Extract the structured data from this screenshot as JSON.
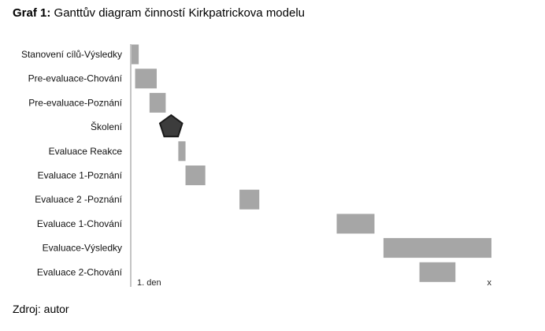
{
  "figure": {
    "label": "Graf 1:",
    "title": "Ganttův diagram činností Kirkpatrickova modelu",
    "source": "Zdroj: autor"
  },
  "chart_data": {
    "type": "bar",
    "orientation": "horizontal-gantt",
    "x_start_label": "1. den",
    "x_end_label": "x",
    "x_range": [
      0,
      100
    ],
    "tasks": [
      {
        "name": "Stanovení cílů-Výsledky",
        "start": 0.0,
        "end": 2.0,
        "marker": "bar"
      },
      {
        "name": "Pre-evaluace-Chování",
        "start": 1.0,
        "end": 7.0,
        "marker": "bar"
      },
      {
        "name": "Pre-evaluace-Poznání",
        "start": 5.0,
        "end": 9.5,
        "marker": "bar"
      },
      {
        "name": "Školení",
        "start": 11.0,
        "end": 11.0,
        "marker": "pentagon"
      },
      {
        "name": "Evaluace Reakce",
        "start": 13.0,
        "end": 15.0,
        "marker": "bar"
      },
      {
        "name": "Evaluace 1-Poznání",
        "start": 15.0,
        "end": 20.5,
        "marker": "bar"
      },
      {
        "name": "Evaluace 2 -Poznání",
        "start": 30.0,
        "end": 35.5,
        "marker": "bar"
      },
      {
        "name": "Evaluace 1-Chování",
        "start": 57.0,
        "end": 67.5,
        "marker": "bar"
      },
      {
        "name": "Evaluace-Výsledky",
        "start": 70.0,
        "end": 100.0,
        "marker": "bar"
      },
      {
        "name": "Evaluace 2-Chování",
        "start": 80.0,
        "end": 90.0,
        "marker": "bar"
      }
    ],
    "colors": {
      "bar": "#a6a6a6",
      "pentagon_fill": "#3c3c3c",
      "pentagon_stroke": "#1a1a1a",
      "axis": "#888888"
    }
  }
}
